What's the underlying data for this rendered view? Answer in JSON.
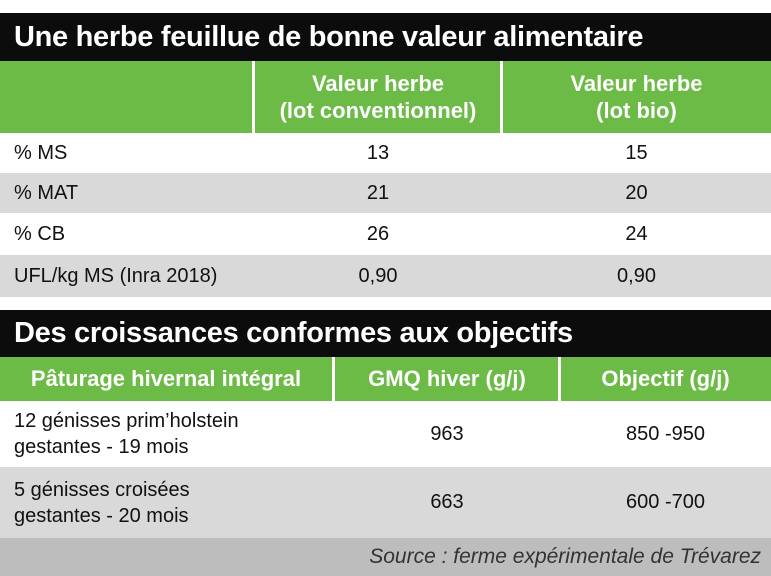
{
  "table1": {
    "title": "Une herbe feuillue de bonne valeur alimentaire",
    "header": {
      "col2": [
        "Valeur herbe",
        "(lot conventionnel)"
      ],
      "col3": [
        "Valeur herbe",
        "(lot bio)"
      ]
    },
    "rows": [
      {
        "label": "% MS",
        "conventionnel": "13",
        "bio": "15"
      },
      {
        "label": "% MAT",
        "conventionnel": "21",
        "bio": "20"
      },
      {
        "label": "% CB",
        "conventionnel": "26",
        "bio": "24"
      },
      {
        "label": "UFL/kg MS (Inra 2018)",
        "conventionnel": "0,90",
        "bio": "0,90"
      }
    ]
  },
  "table2": {
    "title": "Des croissances conformes aux objectifs",
    "header": {
      "col1": "Pâturage hivernal intégral",
      "col2": "GMQ hiver (g/j)",
      "col3": "Objectif (g/j)"
    },
    "rows": [
      {
        "label": [
          "12 génisses prim’holstein",
          "gestantes - 19 mois"
        ],
        "gmq": "963",
        "objectif": "850 -950"
      },
      {
        "label": [
          "5 génisses croisées",
          "gestantes - 20 mois"
        ],
        "gmq": "663",
        "objectif": "600 -700"
      }
    ]
  },
  "source": "Source : ferme expérimentale de Trévarez",
  "colors": {
    "title_bg": "#0c0c0c",
    "header_green": "#6dbb47",
    "row_grey": "#d9d9d9",
    "source_bg": "#bdbdbd"
  }
}
